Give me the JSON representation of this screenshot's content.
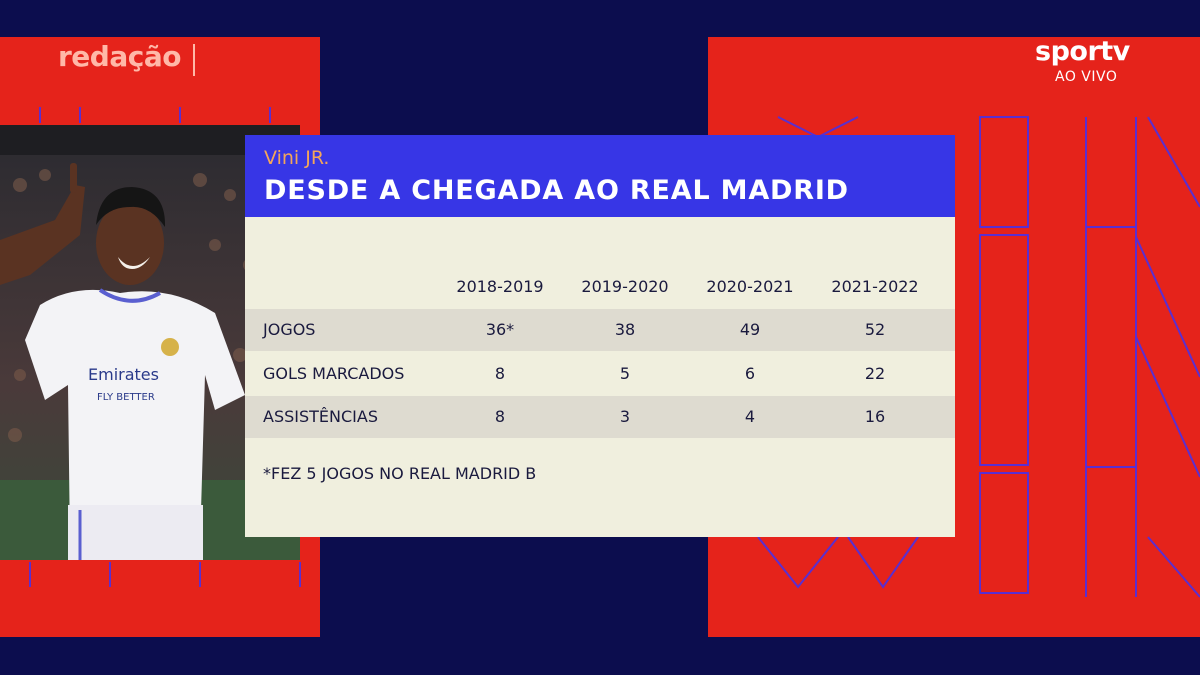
{
  "branding": {
    "left_logo": "redação",
    "channel_logo": "sportv",
    "live_label": "AO VIVO"
  },
  "card": {
    "subtitle": "Vini JR.",
    "title": "DESDE A CHEGADA AO REAL MADRID",
    "columns": [
      "2018-2019",
      "2019-2020",
      "2020-2021",
      "2021-2022"
    ],
    "rows": [
      {
        "label": "JOGOS",
        "values": [
          "36*",
          "38",
          "49",
          "52"
        ]
      },
      {
        "label": "GOLS MARCADOS",
        "values": [
          "8",
          "5",
          "6",
          "22"
        ]
      },
      {
        "label": "ASSISTÊNCIAS",
        "values": [
          "8",
          "3",
          "4",
          "16"
        ]
      }
    ],
    "footnote": "*FEZ 5 JOGOS NO REAL MADRID B"
  },
  "photo": {
    "shirt_sponsor_line1": "Emirates",
    "shirt_sponsor_line2": "FLY BETTER"
  },
  "colors": {
    "background": "#0c0d4e",
    "red_panel": "#e5231b",
    "header_blue": "#3736e6",
    "card_bg": "#f0efde",
    "row_shade": "#dedbd0",
    "subtitle_orange": "#f3a65a"
  }
}
